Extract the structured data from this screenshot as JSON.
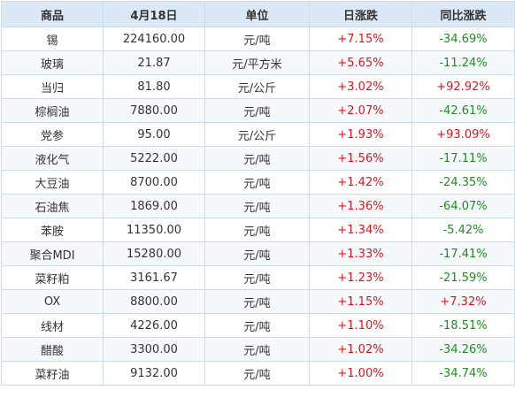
{
  "headers": [
    "商品",
    "4月18日",
    "单位",
    "日涨跌",
    "同比涨跌"
  ],
  "colors": {
    "up": "#e0141e",
    "down": "#1f8c1f",
    "header_bg": "#dbe9f6",
    "border": "#c9dceb"
  },
  "rows": [
    {
      "name": "锡",
      "price": "224160.00",
      "unit": "元/吨",
      "daily": "+7.15%",
      "yoy": "-34.69%"
    },
    {
      "name": "玻璃",
      "price": "21.87",
      "unit": "元/平方米",
      "daily": "+5.65%",
      "yoy": "-11.24%"
    },
    {
      "name": "当归",
      "price": "81.80",
      "unit": "元/公斤",
      "daily": "+3.02%",
      "yoy": "+92.92%"
    },
    {
      "name": "棕榈油",
      "price": "7880.00",
      "unit": "元/吨",
      "daily": "+2.07%",
      "yoy": "-42.61%"
    },
    {
      "name": "党参",
      "price": "95.00",
      "unit": "元/公斤",
      "daily": "+1.93%",
      "yoy": "+93.09%"
    },
    {
      "name": "液化气",
      "price": "5222.00",
      "unit": "元/吨",
      "daily": "+1.56%",
      "yoy": "-17.11%"
    },
    {
      "name": "大豆油",
      "price": "8700.00",
      "unit": "元/吨",
      "daily": "+1.42%",
      "yoy": "-24.35%"
    },
    {
      "name": "石油焦",
      "price": "1869.00",
      "unit": "元/吨",
      "daily": "+1.36%",
      "yoy": "-64.07%"
    },
    {
      "name": "苯胺",
      "price": "11350.00",
      "unit": "元/吨",
      "daily": "+1.34%",
      "yoy": "-5.42%"
    },
    {
      "name": "聚合MDI",
      "price": "15280.00",
      "unit": "元/吨",
      "daily": "+1.33%",
      "yoy": "-17.41%"
    },
    {
      "name": "菜籽粕",
      "price": "3161.67",
      "unit": "元/吨",
      "daily": "+1.23%",
      "yoy": "-21.59%"
    },
    {
      "name": "OX",
      "price": "8800.00",
      "unit": "元/吨",
      "daily": "+1.15%",
      "yoy": "+7.32%"
    },
    {
      "name": "线材",
      "price": "4226.00",
      "unit": "元/吨",
      "daily": "+1.10%",
      "yoy": "-18.51%"
    },
    {
      "name": "醋酸",
      "price": "3300.00",
      "unit": "元/吨",
      "daily": "+1.02%",
      "yoy": "-34.26%"
    },
    {
      "name": "菜籽油",
      "price": "9132.00",
      "unit": "元/吨",
      "daily": "+1.00%",
      "yoy": "-34.74%"
    }
  ]
}
